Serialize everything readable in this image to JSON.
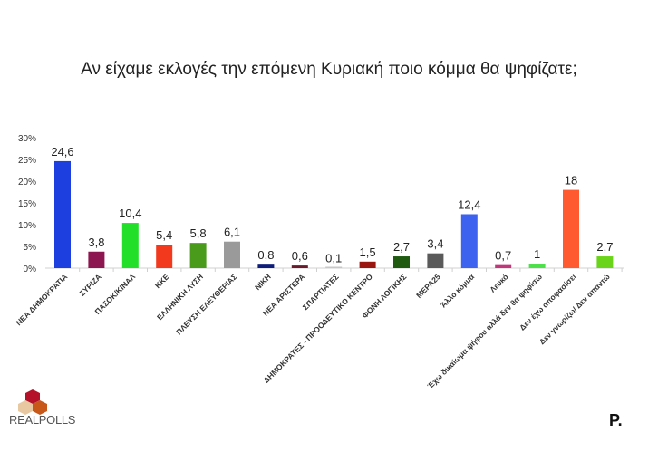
{
  "chart_data": {
    "type": "bar",
    "title": "Αν είχαμε εκλογές την επόμενη Κυριακή ποιο κόμμα θα ψηφίζατε;",
    "xlabel": "",
    "ylabel": "",
    "ylim": [
      0,
      30
    ],
    "yticks": [
      "0%",
      "5%",
      "10%",
      "15%",
      "20%",
      "25%",
      "30%"
    ],
    "grid": false,
    "categories": [
      "ΝΕΑ ΔΗΜΟΚΡΑΤΙΑ",
      "ΣΥΡΙΖΑ",
      "ΠΑΣΟΚ/ΚΙΝΑΛ",
      "ΚΚΕ",
      "ΕΛΛΗΝΙΚΗ ΛΥΣΗ",
      "ΠΛΕΥΣΗ ΕΛΕΥΘΕΡΙΑΣ",
      "ΝΙΚΗ",
      "ΝΕΑ ΑΡΙΣΤΕΡΑ",
      "ΣΠΑΡΤΙΑΤΕΣ",
      "ΔΗΜΟΚΡΑΤΕΣ - ΠΡΟΟΔΕΥΤΙΚΟ ΚΕΝΤΡΟ",
      "ΦΩΝΗ ΛΟΓΙΚΗΣ",
      "ΜΕΡΑ25",
      "Άλλο κόμμα",
      "Λευκό",
      "Έχω δικαίωμα ψήφου αλλά δεν θα ψηφίσω",
      "Δεν έχω αποφασίσει",
      "Δεν γνωρίζω/ Δεν απαντώ"
    ],
    "values": [
      24.6,
      3.8,
      10.4,
      5.4,
      5.8,
      6.1,
      0.8,
      0.6,
      0.1,
      1.5,
      2.7,
      3.4,
      12.4,
      0.7,
      1,
      18,
      2.7
    ],
    "value_labels": [
      "24,6",
      "3,8",
      "10,4",
      "5,4",
      "5,8",
      "6,1",
      "0,8",
      "0,6",
      "0,1",
      "1,5",
      "2,7",
      "3,4",
      "12,4",
      "0,7",
      "1",
      "18",
      "2,7"
    ],
    "colors": [
      "#1d3fe0",
      "#8e1650",
      "#22e02a",
      "#f2391e",
      "#4a9a1c",
      "#9a9a9a",
      "#0e1e7a",
      "#6a1a2a",
      "#c8c8c8",
      "#9a1410",
      "#1f5a10",
      "#5a5a5a",
      "#3d62f0",
      "#c2367a",
      "#4ee04a",
      "#ff5a30",
      "#6ad41a"
    ]
  },
  "branding": {
    "left_logo": "REALPOLLS",
    "right_logo": "P."
  }
}
